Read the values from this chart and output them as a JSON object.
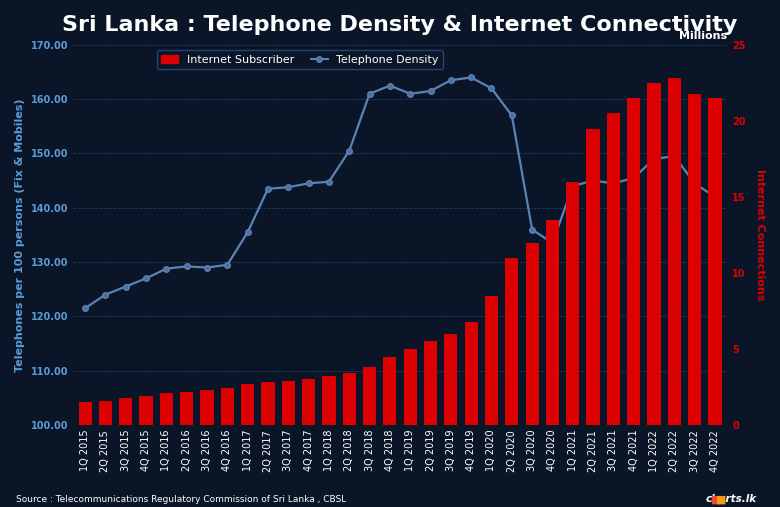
{
  "title": "Sri Lanka : Telephone Density & Internet Connectivity",
  "source": "Source : Telecommunications Regulatory Commission of Sri Lanka , CBSL",
  "background_color": "#0a1628",
  "text_color": "#ffffff",
  "grid_color": "#1e3a5f",
  "categories": [
    "1Q 2015",
    "2Q 2015",
    "3Q 2015",
    "4Q 2015",
    "1Q 2016",
    "2Q 2016",
    "3Q 2016",
    "4Q 2016",
    "1Q 2017",
    "2Q 2017",
    "3Q 2017",
    "4Q 2017",
    "1Q 2018",
    "2Q 2018",
    "3Q 2018",
    "4Q 2018",
    "1Q 2019",
    "2Q 2019",
    "3Q 2019",
    "4Q 2019",
    "1Q 2020",
    "2Q 2020",
    "3Q 2020",
    "4Q 2020",
    "1Q 2021",
    "2Q 2021",
    "3Q 2021",
    "4Q 2021",
    "1Q 2022",
    "2Q 2022",
    "3Q 2022",
    "4Q 2022"
  ],
  "telephone_density": [
    121.5,
    124.0,
    125.5,
    127.0,
    128.8,
    129.2,
    129.0,
    129.5,
    135.5,
    143.5,
    143.8,
    144.5,
    144.8,
    150.5,
    161.0,
    162.5,
    161.0,
    161.5,
    163.5,
    164.0,
    162.0,
    157.0,
    136.0,
    133.5,
    144.0,
    145.0,
    144.5,
    145.5,
    149.0,
    149.5,
    144.5,
    142.0
  ],
  "internet_subscribers": [
    1.5,
    1.6,
    1.8,
    1.9,
    2.1,
    2.2,
    2.3,
    2.4,
    2.7,
    2.8,
    2.9,
    3.0,
    3.2,
    3.4,
    3.8,
    4.5,
    5.0,
    5.5,
    6.0,
    6.8,
    8.5,
    11.0,
    12.0,
    13.5,
    16.0,
    19.5,
    20.5,
    21.5,
    22.5,
    22.8,
    21.8,
    21.5
  ],
  "bar_color": "#dd0000",
  "line_color": "#5b82b5",
  "marker_color": "#2a4f8a",
  "marker_face": "#4a6fa0",
  "ylabel_left": "Telephones per 100 persons (Fix & Mobiles)",
  "ylabel_right": "Internet Connections",
  "ylabel_right_top": "Millions",
  "ylim_left": [
    100.0,
    170.0
  ],
  "ylim_right": [
    0,
    25
  ],
  "yticks_left": [
    100.0,
    110.0,
    120.0,
    130.0,
    140.0,
    150.0,
    160.0,
    170.0
  ],
  "yticks_right": [
    0,
    5,
    10,
    15,
    20,
    25
  ],
  "title_fontsize": 16,
  "axis_label_fontsize": 8,
  "tick_fontsize": 7,
  "legend_fontsize": 8
}
